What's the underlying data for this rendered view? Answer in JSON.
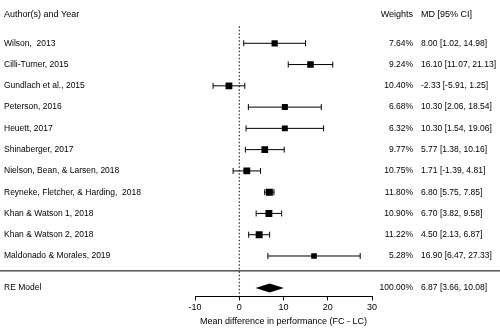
{
  "chart_data": {
    "type": "forest",
    "x_label": "Mean difference in performance (FC - LC)",
    "column_headers": {
      "studies": "Author(s) and Year",
      "weights": "Weights",
      "estimates": "MD [95% CI]"
    },
    "xlim": [
      -10,
      30
    ],
    "xticks": [
      -10,
      0,
      10,
      20,
      30
    ],
    "grid": false,
    "reference_line": 0,
    "color": "#000000",
    "marker": "square",
    "studies": [
      {
        "name": "Wilson,  2013",
        "weight": 7.64,
        "weight_label": "7.64%",
        "md": 8.0,
        "ci_lower": 1.02,
        "ci_upper": 14.98,
        "label": "8.00 [1.02, 14.98]"
      },
      {
        "name": "Cilli-Turner, 2015",
        "weight": 9.24,
        "weight_label": "9.24%",
        "md": 16.1,
        "ci_lower": 11.07,
        "ci_upper": 21.13,
        "label": "16.10 [11.07, 21.13]"
      },
      {
        "name": "Gundlach et al., 2015",
        "weight": 10.4,
        "weight_label": "10.40%",
        "md": -2.33,
        "ci_lower": -5.91,
        "ci_upper": 1.25,
        "label": "-2.33 [-5.91, 1.25]"
      },
      {
        "name": "Peterson, 2016",
        "weight": 6.68,
        "weight_label": "6.68%",
        "md": 10.3,
        "ci_lower": 2.06,
        "ci_upper": 18.54,
        "label": "10.30 [2.06, 18.54]"
      },
      {
        "name": "Heuett, 2017",
        "weight": 6.32,
        "weight_label": "6.32%",
        "md": 10.3,
        "ci_lower": 1.54,
        "ci_upper": 19.06,
        "label": "10.30 [1.54, 19.06]"
      },
      {
        "name": "Shinaberger, 2017",
        "weight": 9.77,
        "weight_label": "9.77%",
        "md": 5.77,
        "ci_lower": 1.38,
        "ci_upper": 10.16,
        "label": "5.77 [1.38, 10.16]"
      },
      {
        "name": "Nielson, Bean, & Larsen, 2018",
        "weight": 10.75,
        "weight_label": "10.75%",
        "md": 1.71,
        "ci_lower": -1.39,
        "ci_upper": 4.81,
        "label": "1.71 [-1.39, 4.81]"
      },
      {
        "name": "Reyneke, Fletcher, & Harding,  2018",
        "weight": 11.8,
        "weight_label": "11.80%",
        "md": 6.8,
        "ci_lower": 5.75,
        "ci_upper": 7.85,
        "label": "6.80 [5.75, 7.85]"
      },
      {
        "name": "Khan & Watson 1, 2018",
        "weight": 10.9,
        "weight_label": "10.90%",
        "md": 6.7,
        "ci_lower": 3.82,
        "ci_upper": 9.58,
        "label": "6.70 [3.82, 9.58]"
      },
      {
        "name": "Khan & Watson 2, 2018",
        "weight": 11.22,
        "weight_label": "11.22%",
        "md": 4.5,
        "ci_lower": 2.13,
        "ci_upper": 6.87,
        "label": "4.50 [2.13, 6.87]"
      },
      {
        "name": "Maldonado & Morales, 2019",
        "weight": 5.28,
        "weight_label": "5.28%",
        "md": 16.9,
        "ci_lower": 6.47,
        "ci_upper": 27.33,
        "label": "16.90 [6.47, 27.33]"
      }
    ],
    "summary": {
      "name": "RE Model",
      "weight": 100.0,
      "weight_label": "100.00%",
      "md": 6.87,
      "ci_lower": 3.66,
      "ci_upper": 10.08,
      "label": "6.87 [3.66, 10.08]"
    }
  }
}
